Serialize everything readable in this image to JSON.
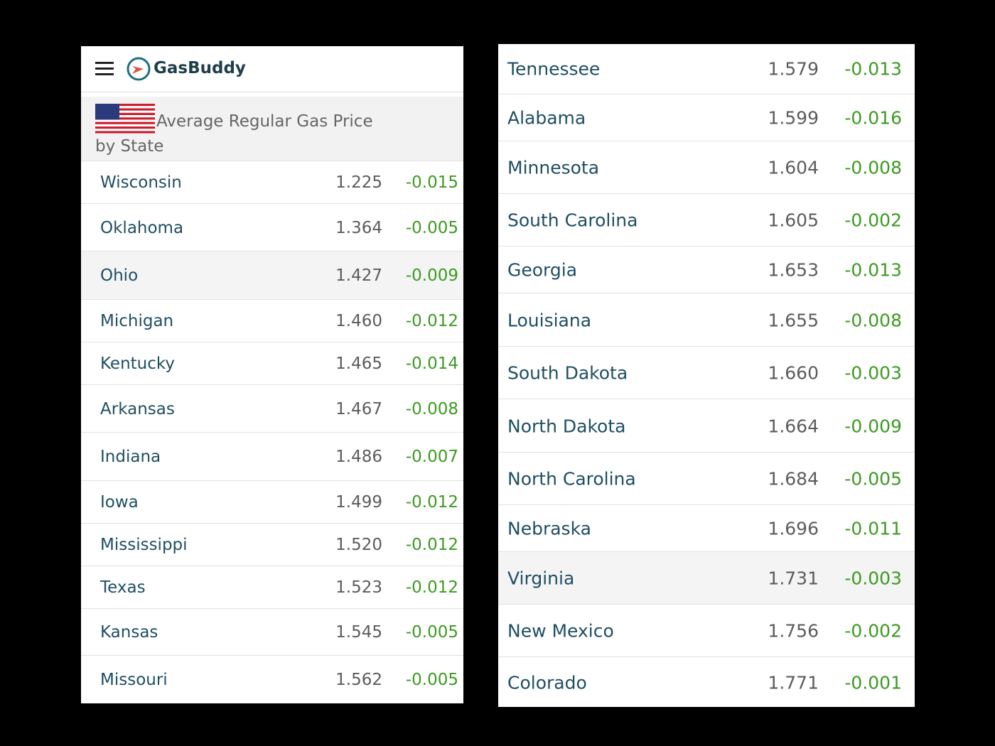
{
  "header": {
    "logo": "GasBuddy",
    "title": "Average Regular Gas Price by State"
  },
  "left_table": {
    "rows": [
      [
        "Wisconsin",
        "1.225",
        "-0.015"
      ],
      [
        "Oklahoma",
        "1.364",
        "-0.005"
      ],
      [
        "Ohio",
        "1.427",
        "-0.009"
      ],
      [
        "Michigan",
        "1.460",
        "-0.012"
      ],
      [
        "Kentucky",
        "1.465",
        "-0.014"
      ],
      [
        "Arkansas",
        "1.467",
        "-0.008"
      ],
      [
        "Indiana",
        "1.486",
        "-0.007"
      ],
      [
        "Iowa",
        "1.499",
        "-0.012"
      ],
      [
        "Mississippi",
        "1.520",
        "-0.012"
      ],
      [
        "Texas",
        "1.523",
        "-0.012"
      ],
      [
        "Kansas",
        "1.545",
        "-0.005"
      ],
      [
        "Missouri",
        "1.562",
        "-0.005"
      ]
    ]
  },
  "right_table": {
    "rows": [
      [
        "Tennessee",
        "1.579",
        "-0.013"
      ],
      [
        "Alabama",
        "1.599",
        "-0.016"
      ],
      [
        "Minnesota",
        "1.604",
        "-0.008"
      ],
      [
        "South Carolina",
        "1.605",
        "-0.002"
      ],
      [
        "Georgia",
        "1.653",
        "-0.013"
      ],
      [
        "Louisiana",
        "1.655",
        "-0.008"
      ],
      [
        "South Dakota",
        "1.660",
        "-0.003"
      ],
      [
        "North Dakota",
        "1.664",
        "-0.009"
      ],
      [
        "North Carolina",
        "1.684",
        "-0.005"
      ],
      [
        "Nebraska",
        "1.696",
        "-0.011"
      ],
      [
        "Virginia",
        "1.731",
        "-0.003"
      ],
      [
        "New Mexico",
        "1.756",
        "-0.002"
      ],
      [
        "Colorado",
        "1.771",
        "-0.001"
      ]
    ]
  }
}
